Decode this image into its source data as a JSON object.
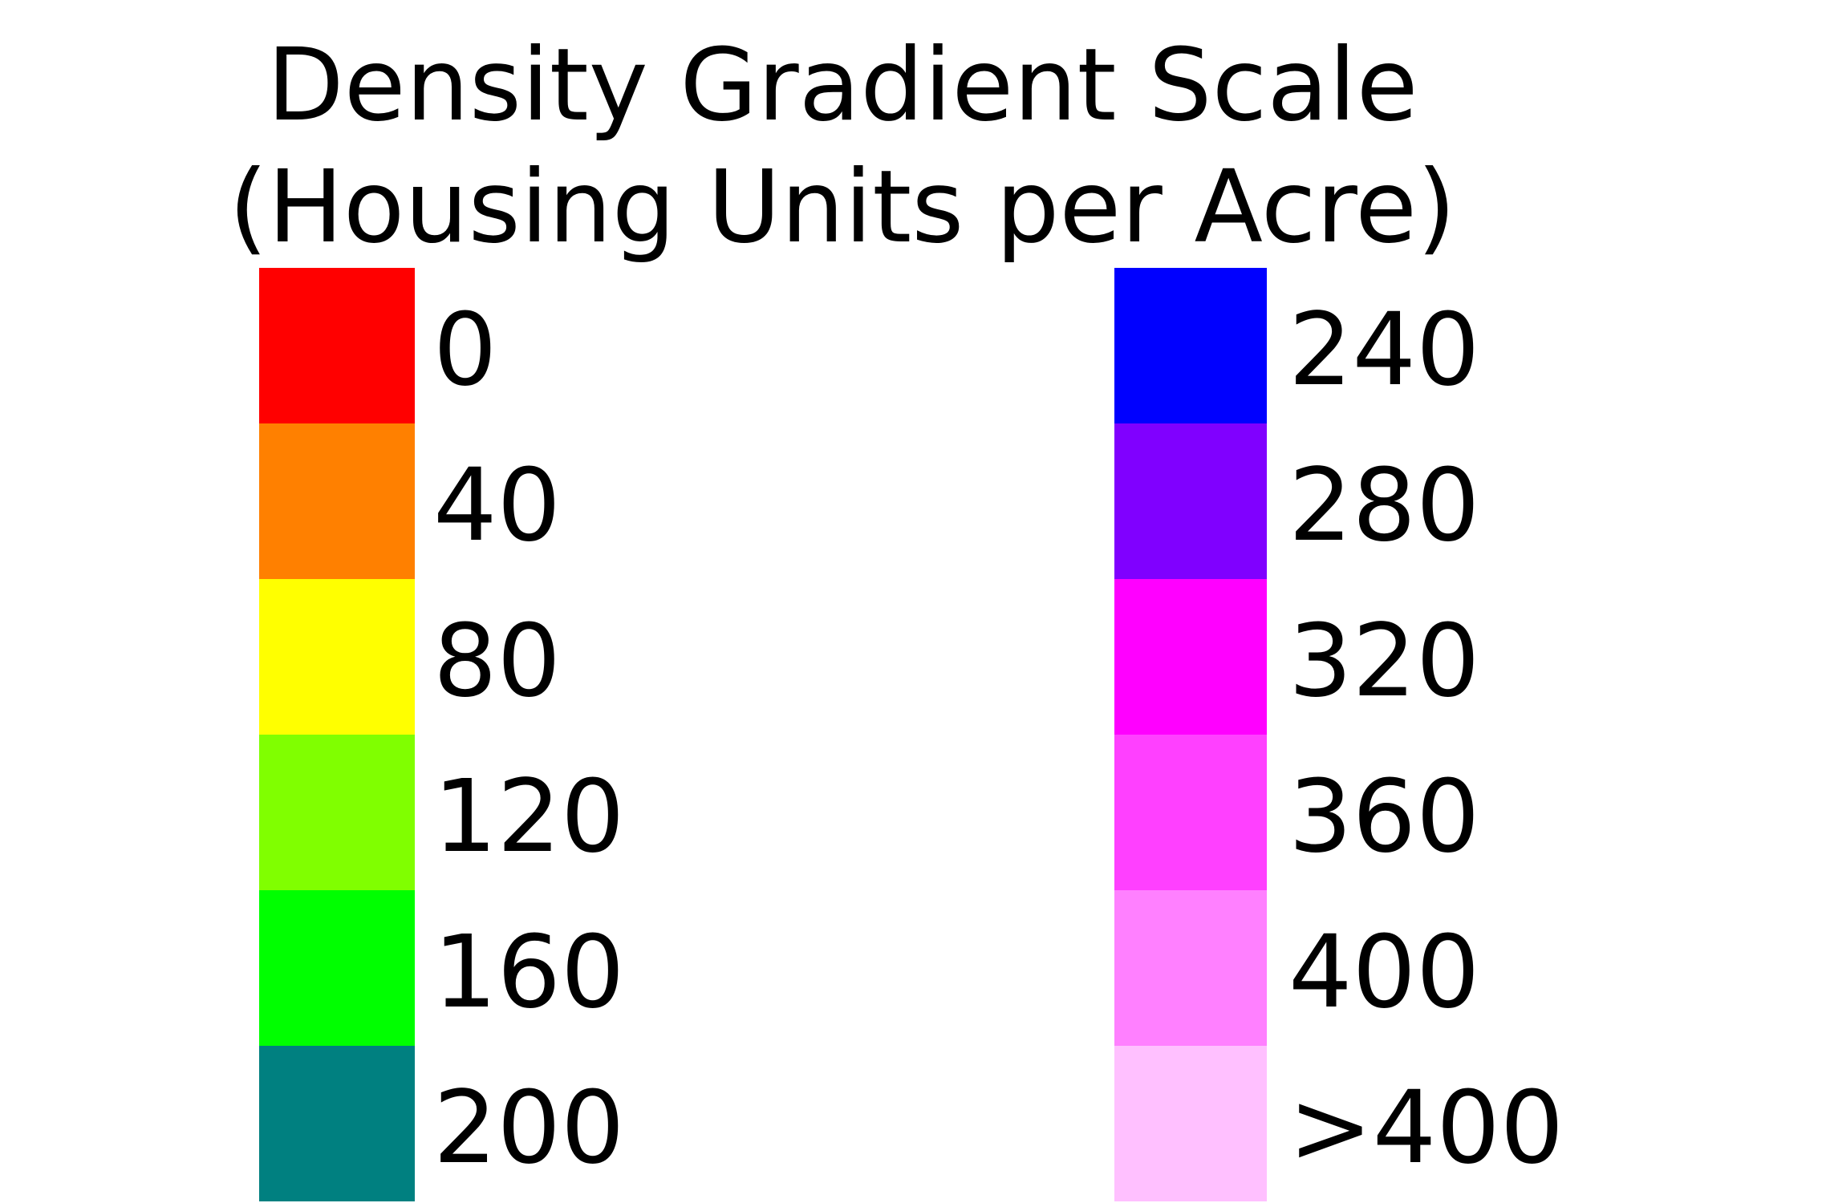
{
  "title": {
    "line1": "Density Gradient Scale",
    "line2": "(Housing Units per Acre)"
  },
  "legend": {
    "left": [
      {
        "label": "0",
        "color": "#FF0000"
      },
      {
        "label": "40",
        "color": "#FF8000"
      },
      {
        "label": "80",
        "color": "#FFFF00"
      },
      {
        "label": "120",
        "color": "#80FF00"
      },
      {
        "label": "160",
        "color": "#00FF00"
      },
      {
        "label": "200",
        "color": "#008080"
      }
    ],
    "right": [
      {
        "label": "240",
        "color": "#0000FF"
      },
      {
        "label": "280",
        "color": "#8000FF"
      },
      {
        "label": "320",
        "color": "#FF00FF"
      },
      {
        "label": "360",
        "color": "#FF40FF"
      },
      {
        "label": "400",
        "color": "#FF80FF"
      },
      {
        "label": ">400",
        "color": "#FFC0FF"
      }
    ]
  }
}
